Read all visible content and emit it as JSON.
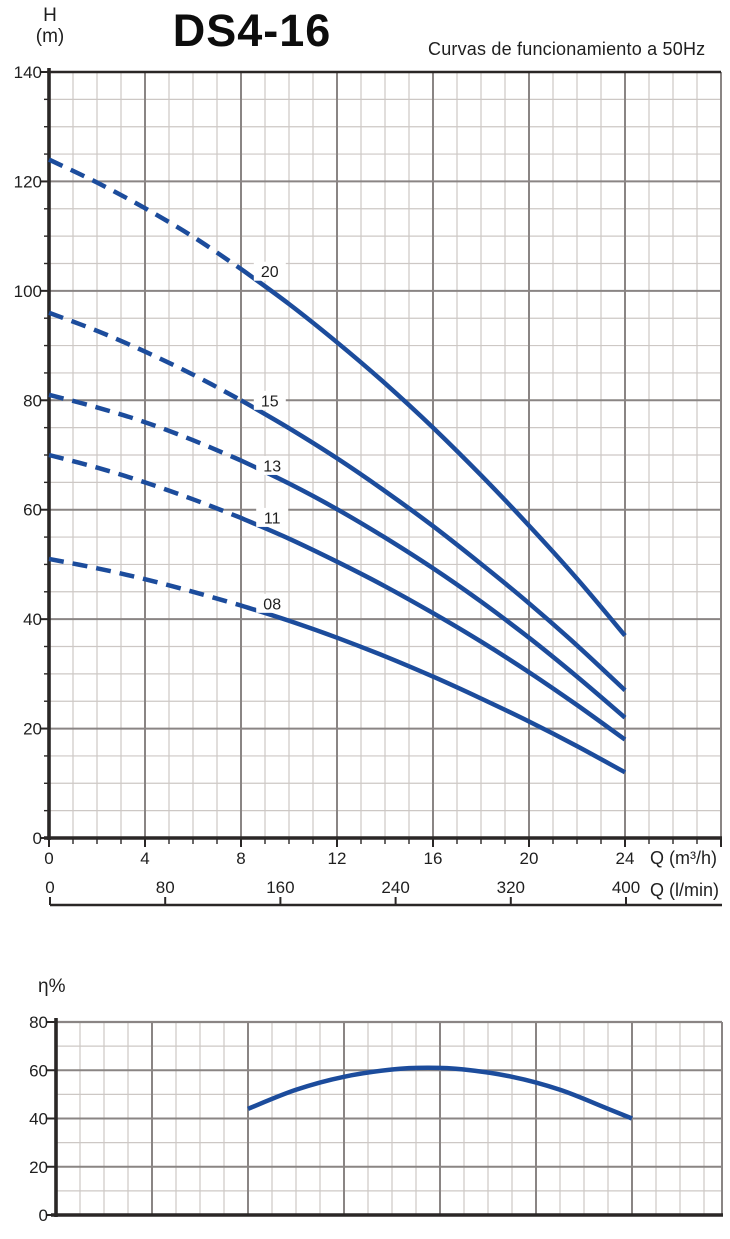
{
  "header": {
    "axis_title_top": "H",
    "axis_title_bottom": "(m)",
    "title": "DS4-16",
    "subtitle": "Curvas de funcionamiento a 50Hz"
  },
  "colors": {
    "curve": "#1c4c9c",
    "grid_major": "#8a8584",
    "grid_minor": "#cdc8c5",
    "axis": "#2a2726",
    "text": "#1f1f1f",
    "label_bg": "#ffffff"
  },
  "chart_data": [
    {
      "id": "head-flow",
      "type": "line",
      "title": "DS4-16",
      "subtitle": "Curvas de funcionamiento a 50Hz",
      "ylabel": "H (m)",
      "xlabel": "Q (m³/h)",
      "xlabel_secondary": "Q (l/min)",
      "xlim": [
        0,
        28
      ],
      "ylim": [
        0,
        140
      ],
      "x_ticks": [
        0,
        4,
        8,
        12,
        16,
        20,
        24
      ],
      "x_ticks_secondary": [
        0,
        80,
        160,
        240,
        320,
        400
      ],
      "y_ticks": [
        0,
        20,
        40,
        60,
        80,
        100,
        120,
        140
      ],
      "grid": "major+minor",
      "legend": "inline-curve-labels",
      "dash_split_x": 8,
      "series": [
        {
          "name": "20",
          "label": {
            "text": "20",
            "x": 9.2,
            "y": 103.5
          },
          "points": [
            [
              0,
              124
            ],
            [
              2,
              119.8
            ],
            [
              4,
              115.1
            ],
            [
              6,
              109.9
            ],
            [
              8,
              104
            ],
            [
              10,
              97.6
            ],
            [
              12,
              90.6
            ],
            [
              14,
              83.1
            ],
            [
              16,
              75
            ],
            [
              18,
              66.3
            ],
            [
              20,
              57.1
            ],
            [
              22,
              47.4
            ],
            [
              24,
              37
            ]
          ]
        },
        {
          "name": "15",
          "label": {
            "text": "15",
            "x": 9.2,
            "y": 79.9
          },
          "points": [
            [
              0,
              96
            ],
            [
              2,
              92.7
            ],
            [
              4,
              88.9
            ],
            [
              6,
              84.7
            ],
            [
              8,
              80
            ],
            [
              10,
              74.9
            ],
            [
              12,
              69.4
            ],
            [
              14,
              63.4
            ],
            [
              16,
              57
            ],
            [
              18,
              50.1
            ],
            [
              20,
              42.9
            ],
            [
              22,
              35.2
            ],
            [
              24,
              27
            ]
          ]
        },
        {
          "name": "13",
          "label": {
            "text": "13",
            "x": 9.3,
            "y": 68.0
          },
          "points": [
            [
              0,
              81
            ],
            [
              2,
              78.7
            ],
            [
              4,
              76
            ],
            [
              6,
              72.7
            ],
            [
              8,
              69
            ],
            [
              10,
              64.8
            ],
            [
              12,
              60.1
            ],
            [
              14,
              54.9
            ],
            [
              16,
              49.3
            ],
            [
              18,
              43.2
            ],
            [
              20,
              36.6
            ],
            [
              22,
              29.5
            ],
            [
              24,
              22
            ]
          ]
        },
        {
          "name": "11",
          "label": {
            "text": "11",
            "x": 9.3,
            "y": 58.5
          },
          "points": [
            [
              0,
              70
            ],
            [
              2,
              67.7
            ],
            [
              4,
              65
            ],
            [
              6,
              61.9
            ],
            [
              8,
              58.5
            ],
            [
              10,
              54.7
            ],
            [
              12,
              50.5
            ],
            [
              14,
              46
            ],
            [
              16,
              41.1
            ],
            [
              18,
              35.9
            ],
            [
              20,
              30.3
            ],
            [
              22,
              24.3
            ],
            [
              24,
              18
            ]
          ]
        },
        {
          "name": "08",
          "label": {
            "text": "08",
            "x": 9.3,
            "y": 42.8
          },
          "points": [
            [
              0,
              51
            ],
            [
              2,
              49.3
            ],
            [
              4,
              47.3
            ],
            [
              6,
              45
            ],
            [
              8,
              42.5
            ],
            [
              10,
              39.7
            ],
            [
              12,
              36.6
            ],
            [
              14,
              33.2
            ],
            [
              16,
              29.5
            ],
            [
              18,
              25.5
            ],
            [
              20,
              21.3
            ],
            [
              22,
              16.8
            ],
            [
              24,
              12
            ]
          ]
        }
      ]
    },
    {
      "id": "efficiency",
      "type": "line",
      "ylabel": "η%",
      "xlim": [
        0,
        27.75
      ],
      "ylim": [
        0,
        80
      ],
      "y_ticks": [
        0,
        20,
        40,
        60,
        80
      ],
      "grid": "major+minor",
      "series": [
        {
          "name": "efficiency",
          "points": [
            [
              8,
              44
            ],
            [
              10,
              51.9
            ],
            [
              12,
              57.3
            ],
            [
              14,
              60.3
            ],
            [
              15.5,
              61
            ],
            [
              17,
              60.3
            ],
            [
              19,
              57.3
            ],
            [
              21,
              51.9
            ],
            [
              23,
              44
            ],
            [
              24,
              40
            ]
          ]
        }
      ]
    }
  ]
}
